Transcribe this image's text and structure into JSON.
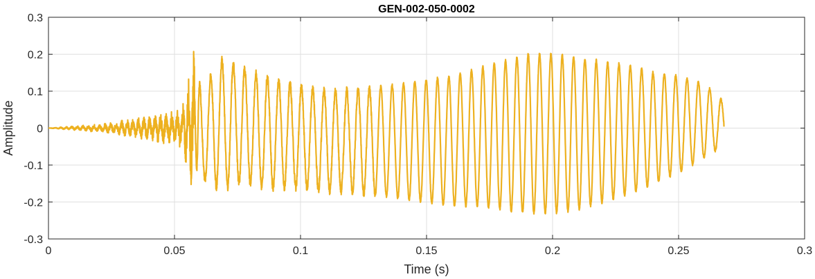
{
  "chart_data": {
    "type": "line",
    "title": "GEN-002-050-0002",
    "xlabel": "Time (s)",
    "ylabel": "Amplitude",
    "xlim": [
      0,
      0.3
    ],
    "ylim": [
      -0.3,
      0.3
    ],
    "x_ticks": [
      0,
      0.05,
      0.1,
      0.15,
      0.2,
      0.25,
      0.3
    ],
    "x_tick_labels": [
      "0",
      "0.05",
      "0.1",
      "0.15",
      "0.2",
      "0.25",
      "0.3"
    ],
    "y_ticks": [
      -0.3,
      -0.2,
      -0.1,
      0,
      0.1,
      0.2,
      0.3
    ],
    "y_tick_labels": [
      "-0.3",
      "-0.2",
      "-0.1",
      "0",
      "0.1",
      "0.2",
      "0.3"
    ],
    "grid": true,
    "line_color": "#EDB120",
    "series": [
      {
        "x": [
          0,
          0.01,
          0.02,
          0.025,
          0.03,
          0.035,
          0.04,
          0.045,
          0.05,
          0.053,
          0.055,
          0.058,
          0.06,
          0.062,
          0.065,
          0.067,
          0.07,
          0.075,
          0.08,
          0.085,
          0.09,
          0.095,
          0.1,
          0.11,
          0.12,
          0.13,
          0.14,
          0.15,
          0.16,
          0.17,
          0.18,
          0.19,
          0.2,
          0.21,
          0.22,
          0.23,
          0.24,
          0.25,
          0.255,
          0.26,
          0.265,
          0.268
        ],
        "peaks": [
          0,
          0.003,
          0.006,
          0.008,
          0.012,
          0.015,
          0.018,
          0.022,
          0.025,
          0.03,
          0.06,
          0.13,
          0.12,
          0.1,
          0.15,
          0.19,
          0.18,
          0.17,
          0.15,
          0.14,
          0.13,
          0.12,
          0.11,
          0.1,
          0.1,
          0.11,
          0.12,
          0.13,
          0.14,
          0.16,
          0.18,
          0.2,
          0.2,
          0.19,
          0.18,
          0.17,
          0.15,
          0.14,
          0.13,
          0.12,
          0.09,
          0.07
        ],
        "troughs": [
          0,
          -0.003,
          -0.006,
          -0.008,
          -0.012,
          -0.015,
          -0.018,
          -0.022,
          -0.025,
          -0.03,
          -0.06,
          -0.1,
          -0.12,
          -0.14,
          -0.15,
          -0.16,
          -0.16,
          -0.15,
          -0.15,
          -0.16,
          -0.16,
          -0.16,
          -0.16,
          -0.17,
          -0.17,
          -0.18,
          -0.19,
          -0.2,
          -0.21,
          -0.21,
          -0.22,
          -0.23,
          -0.23,
          -0.22,
          -0.2,
          -0.18,
          -0.15,
          -0.12,
          -0.1,
          -0.08,
          -0.06,
          -0.05
        ],
        "period_s": 0.0045
      }
    ]
  }
}
